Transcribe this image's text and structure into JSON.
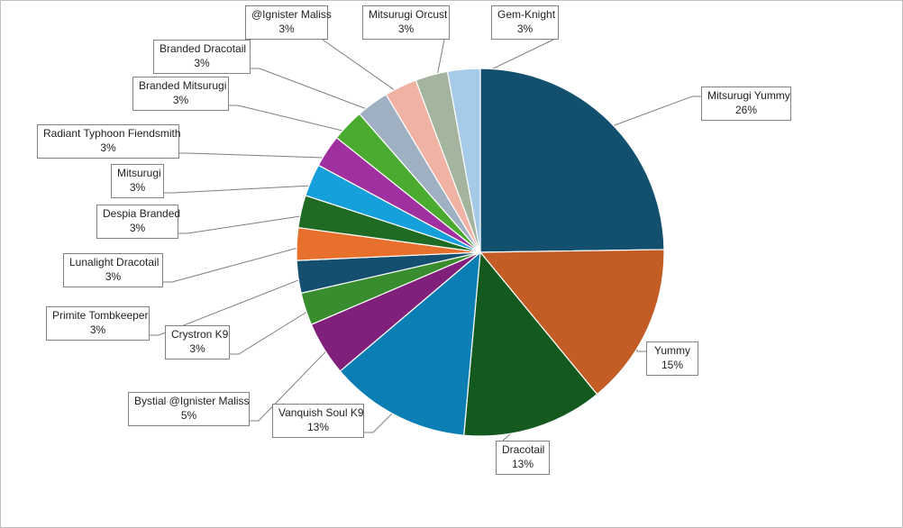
{
  "chart_data": {
    "type": "pie",
    "title": "",
    "start_angle_deg": 0,
    "direction": "clockwise",
    "legend": "none",
    "slices": [
      {
        "name": "Mitsurugi Yummy",
        "value": 26,
        "label": "26%",
        "color": "#12506e"
      },
      {
        "name": "Yummy",
        "value": 15,
        "label": "15%",
        "color": "#c45c26"
      },
      {
        "name": "Dracotail",
        "value": 13,
        "label": "13%",
        "color": "#145a1e"
      },
      {
        "name": "Vanquish Soul K9",
        "value": 13,
        "label": "13%",
        "color": "#0b7fb3"
      },
      {
        "name": "Bystial @Ignister Maliss",
        "value": 5,
        "label": "5%",
        "color": "#80207a"
      },
      {
        "name": "Crystron K9",
        "value": 3,
        "label": "3%",
        "color": "#3a8d2e"
      },
      {
        "name": "Primite Tombkeeper",
        "value": 3,
        "label": "3%",
        "color": "#154f70"
      },
      {
        "name": "Lunalight Dracotail",
        "value": 3,
        "label": "3%",
        "color": "#e8702d"
      },
      {
        "name": "Despia Branded",
        "value": 3,
        "label": "3%",
        "color": "#1f6b23"
      },
      {
        "name": "Mitsurugi",
        "value": 3,
        "label": "3%",
        "color": "#15a0dc"
      },
      {
        "name": "Radiant Typhoon Fiendsmith",
        "value": 3,
        "label": "3%",
        "color": "#a0309f"
      },
      {
        "name": "Branded Mitsurugi",
        "value": 3,
        "label": "3%",
        "color": "#4aab30"
      },
      {
        "name": "Branded Dracotail",
        "value": 3,
        "label": "3%",
        "color": "#9fb0c2"
      },
      {
        "name": "@Ignister Maliss",
        "value": 3,
        "label": "3%",
        "color": "#f0b2a3"
      },
      {
        "name": "Mitsurugi Orcust",
        "value": 3,
        "label": "3%",
        "color": "#a4b49e"
      },
      {
        "name": "Gem-Knight",
        "value": 3,
        "label": "3%",
        "color": "#a6cbe9"
      }
    ]
  }
}
